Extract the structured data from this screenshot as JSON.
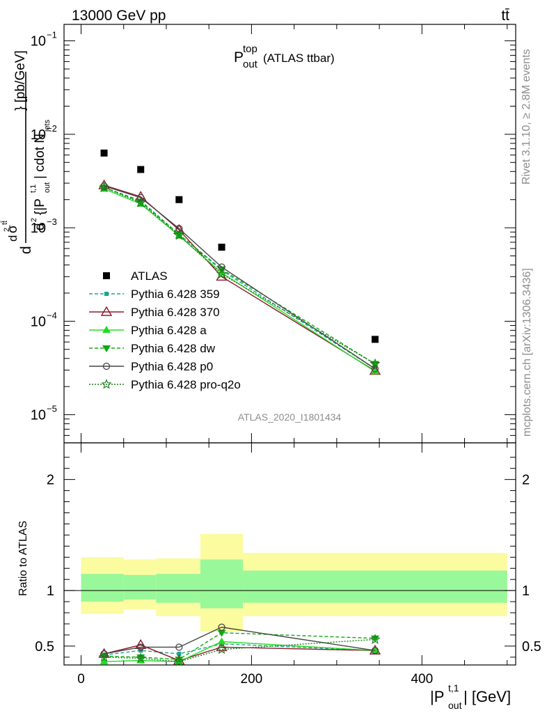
{
  "header": {
    "left": "13000 GeV pp",
    "right": "tt̄"
  },
  "side_labels": {
    "rivet": "Rivet 3.1.10, ≥ 2.8M events",
    "mcplots": "mcplots.cern.ch [arXiv:1306.3436]"
  },
  "watermark": "ATLAS_2020_I1801434",
  "plot_title": {
    "main": "P",
    "sup": "top",
    "sub": "out",
    "rest": "(ATLAS ttbar)"
  },
  "ylabel_main": "d²σ^{tt̄} / d²{|P_out^{t,1}| cdot N_jets} [pb/GeV]",
  "ylabel_ratio": "Ratio to ATLAS",
  "xlabel": "|P_out^{t,1}| [GeV]",
  "colors": {
    "data": "#000000",
    "p359": "#1aa394",
    "p370": "#8b1a2b",
    "pa": "#22dd22",
    "pdw": "#12a812",
    "pp0": "#444444",
    "pq2o": "#1a7a1a",
    "band_inner": "#99f899",
    "band_outer": "#fbfba0"
  },
  "chart_data": [
    {
      "type": "line",
      "panel": "main",
      "y_scale": "log",
      "xlim": [
        -20,
        510
      ],
      "ylim": [
        5e-06,
        0.15
      ],
      "x_ticks": [
        0,
        200,
        400
      ],
      "y_ticks": [
        1e-05,
        0.0001,
        0.001,
        0.01,
        0.1
      ],
      "y_tick_labels": [
        [
          "10",
          "−5"
        ],
        [
          "10",
          "−4"
        ],
        [
          "10",
          "−3"
        ],
        [
          "10",
          "−2"
        ],
        [
          "10",
          "−1"
        ]
      ],
      "legend_position": "lower-left",
      "x": [
        27,
        70,
        115,
        165,
        345
      ],
      "series": [
        {
          "name": "ATLAS",
          "key": "data",
          "values": [
            0.0063,
            0.0042,
            0.002,
            0.00062,
            6.4e-05
          ]
        },
        {
          "name": "Pythia 6.428 359",
          "key": "p359",
          "values": [
            0.0027,
            0.00195,
            0.00085,
            0.00035,
            3.1e-05
          ]
        },
        {
          "name": "Pythia 6.428 370",
          "key": "p370",
          "values": [
            0.00285,
            0.00215,
            0.00095,
            0.0003,
            2.95e-05
          ]
        },
        {
          "name": "Pythia 6.428 a",
          "key": "pa",
          "values": [
            0.0026,
            0.0018,
            0.00082,
            0.00033,
            2.9e-05
          ]
        },
        {
          "name": "Pythia 6.428 dw",
          "key": "pdw",
          "values": [
            0.0027,
            0.0019,
            0.00085,
            0.00036,
            3.5e-05
          ]
        },
        {
          "name": "Pythia 6.428 p0",
          "key": "pp0",
          "values": [
            0.0028,
            0.0021,
            0.00098,
            0.00038,
            3.1e-05
          ]
        },
        {
          "name": "Pythia 6.428 pro-q2o",
          "key": "pq2o",
          "values": [
            0.0027,
            0.00185,
            0.00083,
            0.00032,
            3.5e-05
          ]
        }
      ]
    },
    {
      "type": "line",
      "panel": "ratio",
      "xlim": [
        -20,
        510
      ],
      "ylim": [
        0.33,
        2.33
      ],
      "y_ticks": [
        0.5,
        1,
        2
      ],
      "y_tick_labels": [
        "0.5",
        "1",
        "2"
      ],
      "x_tick_labels": [
        "0",
        "200",
        "400"
      ],
      "bins": [
        [
          0,
          50
        ],
        [
          50,
          88
        ],
        [
          88,
          140
        ],
        [
          140,
          190
        ],
        [
          190,
          500
        ]
      ],
      "band_inner": [
        [
          0.9,
          1.15
        ],
        [
          0.92,
          1.14
        ],
        [
          0.89,
          1.15
        ],
        [
          0.84,
          1.28
        ],
        [
          0.89,
          1.18
        ]
      ],
      "band_outer": [
        [
          0.79,
          1.3
        ],
        [
          0.83,
          1.28
        ],
        [
          0.77,
          1.29
        ],
        [
          0.63,
          1.51
        ],
        [
          0.77,
          1.34
        ]
      ],
      "x": [
        27,
        70,
        115,
        165,
        345
      ],
      "series": [
        {
          "name": "Pythia 6.428 359",
          "key": "p359",
          "values": [
            0.42,
            0.46,
            0.43,
            0.52,
            0.46
          ]
        },
        {
          "name": "Pythia 6.428 370",
          "key": "p370",
          "values": [
            0.43,
            0.51,
            0.37,
            0.49,
            0.46
          ]
        },
        {
          "name": "Pythia 6.428 a",
          "key": "pa",
          "values": [
            0.36,
            0.37,
            0.36,
            0.54,
            0.46
          ]
        },
        {
          "name": "Pythia 6.428 dw",
          "key": "pdw",
          "values": [
            0.41,
            0.4,
            0.38,
            0.62,
            0.57
          ]
        },
        {
          "name": "Pythia 6.428 p0",
          "key": "pp0",
          "values": [
            0.43,
            0.49,
            0.49,
            0.67,
            0.46
          ]
        },
        {
          "name": "Pythia 6.428 pro-q2o",
          "key": "pq2o",
          "values": [
            0.4,
            0.39,
            0.36,
            0.47,
            0.56
          ]
        }
      ]
    }
  ]
}
